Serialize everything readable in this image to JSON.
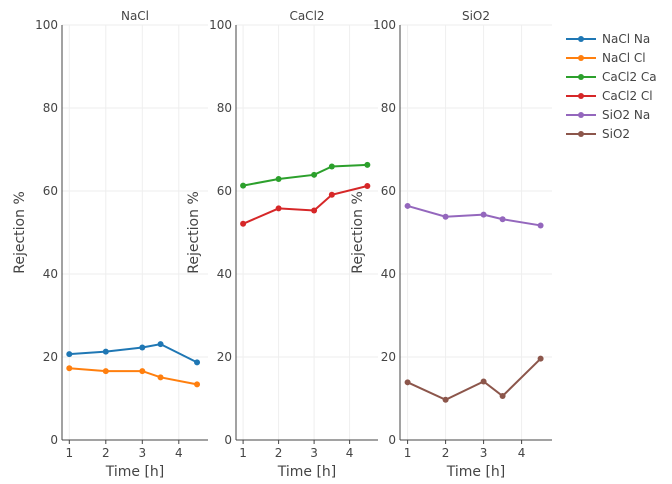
{
  "chart_data": {
    "type": "line",
    "ylim": [
      0,
      100
    ],
    "y_ticks": [
      0,
      20,
      40,
      60,
      80,
      100
    ],
    "x_ticks": [
      1,
      2,
      3,
      4
    ],
    "xlim": [
      0.8,
      4.8
    ],
    "grid": true,
    "legend_position": "right",
    "panels": [
      {
        "title": "NaCl",
        "xlabel": "Time [h]",
        "ylabel": "Rejection %",
        "series": [
          {
            "name": "NaCl Na",
            "color": "#1f77b4",
            "x": [
              1,
              2,
              3,
              3.5,
              4.5
            ],
            "y": [
              20.7,
              21.3,
              22.3,
              23.1,
              18.7
            ]
          },
          {
            "name": "NaCl Cl",
            "color": "#ff7f0e",
            "x": [
              1,
              2,
              3,
              3.5,
              4.5
            ],
            "y": [
              17.3,
              16.6,
              16.6,
              15.1,
              13.4
            ]
          }
        ]
      },
      {
        "title": "CaCl2",
        "xlabel": "Time [h]",
        "ylabel": "Rejection %",
        "series": [
          {
            "name": "CaCl2 Ca",
            "color": "#2ca02c",
            "x": [
              1,
              2,
              3,
              3.5,
              4.5
            ],
            "y": [
              61.3,
              62.9,
              63.9,
              65.9,
              66.3
            ]
          },
          {
            "name": "CaCl2 Cl",
            "color": "#d62728",
            "x": [
              1,
              2,
              3,
              3.5,
              4.5
            ],
            "y": [
              52.1,
              55.8,
              55.3,
              59.1,
              61.2
            ]
          }
        ]
      },
      {
        "title": "SiO2",
        "xlabel": "Time [h]",
        "ylabel": "Rejection %",
        "series": [
          {
            "name": "SiO2 Na",
            "color": "#9467bd",
            "x": [
              1,
              2,
              3,
              3.5,
              4.5
            ],
            "y": [
              56.4,
              53.8,
              54.3,
              53.2,
              51.7
            ]
          },
          {
            "name": "SiO2",
            "color": "#8c564b",
            "x": [
              1,
              2,
              3,
              3.5,
              4.5
            ],
            "y": [
              13.9,
              9.7,
              14.1,
              10.6,
              19.6
            ]
          }
        ]
      }
    ]
  }
}
